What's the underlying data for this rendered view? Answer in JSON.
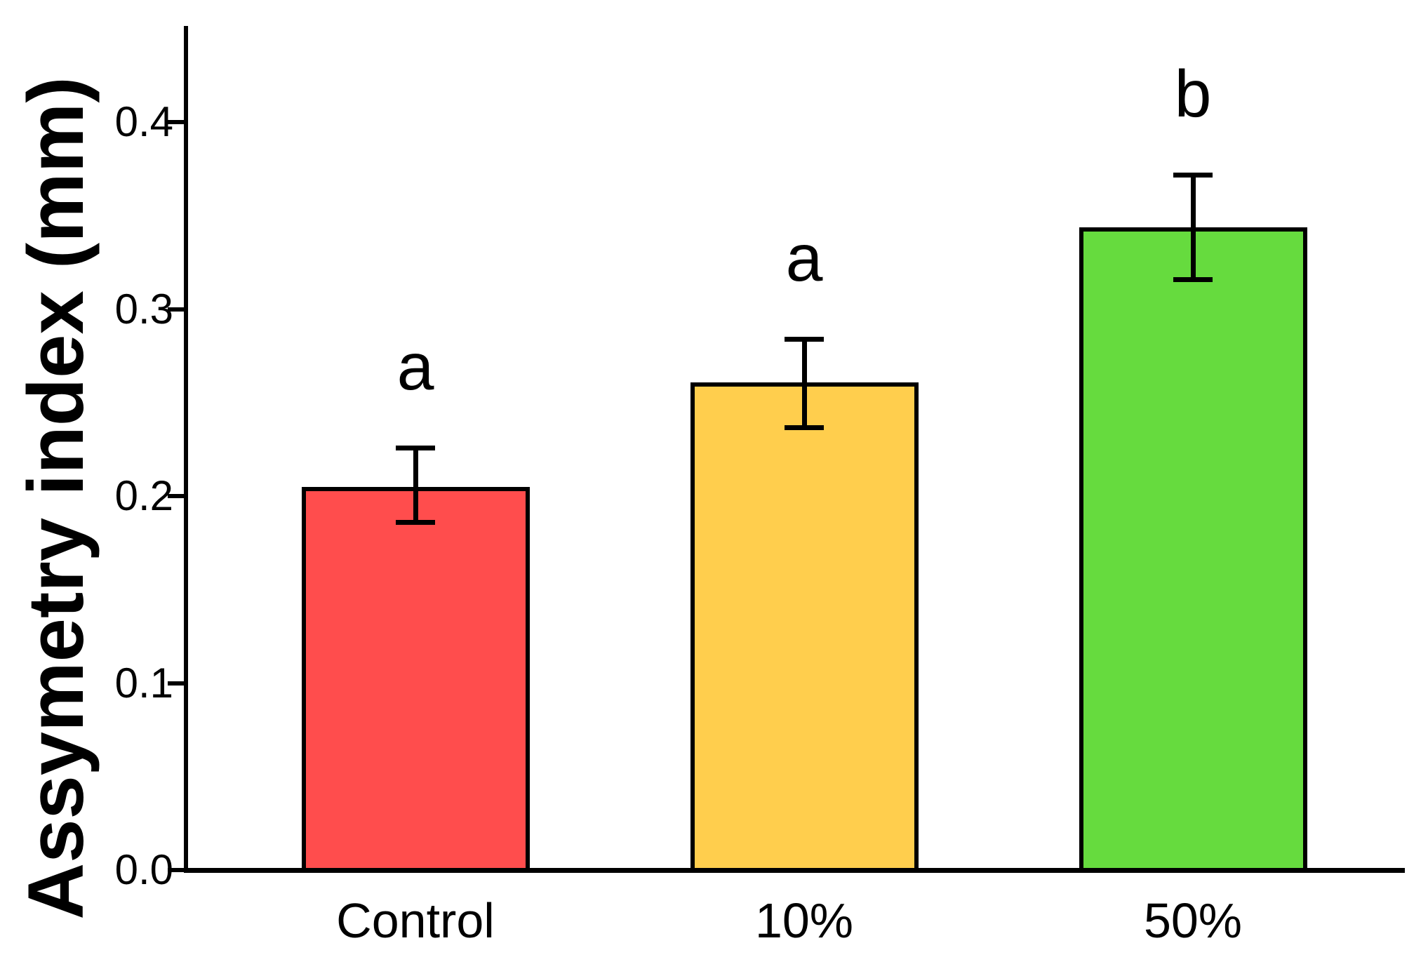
{
  "chart_data": {
    "type": "bar",
    "title": "",
    "xlabel": "",
    "ylabel": "Assymetry index (mm)",
    "categories": [
      "Control",
      "10%",
      "50%"
    ],
    "values": [
      0.205,
      0.261,
      0.344
    ],
    "error_upper": [
      0.226,
      0.284,
      0.372
    ],
    "error_lower": [
      0.186,
      0.237,
      0.316
    ],
    "sig_letters": [
      "a",
      "a",
      "b"
    ],
    "bar_colors": [
      "#FF4D4D",
      "#FFCE4D",
      "#66DB3E"
    ],
    "bar_border_color": "#000000",
    "axis_color": "#000000",
    "yticks": [
      0.0,
      0.1,
      0.2,
      0.3,
      0.4
    ],
    "ytick_labels": [
      "0.0",
      "0.1",
      "0.2",
      "0.3",
      "0.4"
    ],
    "ylim": [
      0,
      0.452
    ],
    "grid": false,
    "legend": false,
    "error_bars": true,
    "background": "#ffffff"
  }
}
